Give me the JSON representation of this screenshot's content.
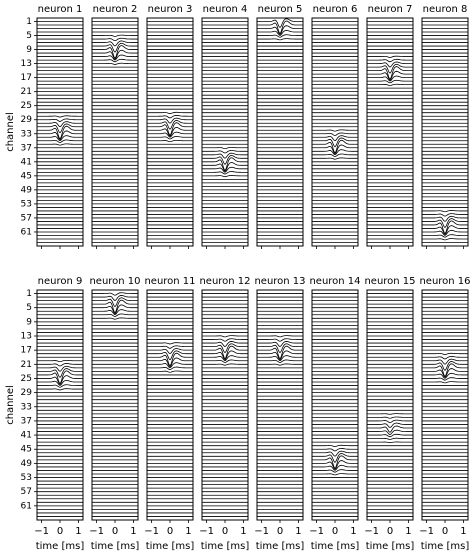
{
  "chart_data": {
    "type": "line",
    "ylabel": "channel",
    "xlabel": "time [ms]",
    "xlim": [
      -1.25,
      1.25
    ],
    "xticks": [
      {
        "value": -1,
        "label": "−1"
      },
      0,
      1
    ],
    "ylim": [
      0,
      65
    ],
    "y_inverted": true,
    "yticks": [
      1,
      5,
      9,
      13,
      17,
      21,
      25,
      29,
      33,
      37,
      41,
      45,
      49,
      53,
      57,
      61
    ],
    "series": [
      {
        "name": "neuron 1",
        "color": "#000000",
        "values": [
          0,
          0,
          0,
          0,
          0,
          0,
          0,
          0,
          0,
          0,
          0,
          0,
          0,
          0,
          0,
          0,
          0,
          0,
          0,
          0,
          0,
          0,
          0,
          0,
          0,
          0,
          0,
          0.1,
          0.2,
          0.4,
          0.7,
          1,
          0.7,
          0.4,
          0.2,
          0.1,
          0,
          0,
          0,
          0,
          0,
          0,
          0,
          0,
          0,
          0,
          0,
          0,
          0,
          0,
          0,
          0,
          0,
          0,
          0,
          0,
          0,
          0,
          0,
          0,
          0,
          0,
          0,
          0
        ]
      },
      {
        "name": "neuron 2",
        "color": "#000000",
        "values": [
          0,
          0,
          0,
          0,
          0.1,
          0.2,
          0.4,
          0.7,
          1,
          0.7,
          0.4,
          0.2,
          0.1,
          0,
          0,
          0,
          0,
          0,
          0,
          0,
          0,
          0,
          0,
          0,
          0,
          0,
          0,
          0,
          0,
          0,
          0,
          0,
          0,
          0,
          0,
          0,
          0,
          0,
          0,
          0,
          0,
          0,
          0,
          0,
          0,
          0,
          0,
          0,
          0,
          0,
          0,
          0,
          0,
          0,
          0,
          0,
          0,
          0,
          0,
          0,
          0,
          0,
          0,
          0
        ]
      },
      {
        "name": "neuron 3",
        "color": "#000000",
        "values": [
          0,
          0,
          0,
          0,
          0,
          0,
          0,
          0,
          0,
          0,
          0,
          0,
          0,
          0,
          0,
          0,
          0,
          0,
          0,
          0,
          0,
          0,
          0,
          0,
          0,
          0,
          0.1,
          0.2,
          0.4,
          0.7,
          1,
          0.7,
          0.4,
          0.2,
          0.1,
          0,
          0,
          0,
          0,
          0,
          0,
          0,
          0,
          0,
          0,
          0,
          0,
          0,
          0,
          0,
          0,
          0,
          0,
          0,
          0,
          0,
          0,
          0,
          0,
          0,
          0,
          0,
          0,
          0
        ]
      },
      {
        "name": "neuron 4",
        "color": "#000000",
        "values": [
          0,
          0,
          0,
          0,
          0,
          0,
          0,
          0,
          0,
          0,
          0,
          0,
          0,
          0,
          0,
          0,
          0,
          0,
          0,
          0,
          0,
          0,
          0,
          0,
          0,
          0,
          0,
          0,
          0,
          0,
          0,
          0,
          0,
          0,
          0,
          0,
          0.1,
          0.2,
          0.4,
          0.7,
          1,
          0.7,
          0.4,
          0.2,
          0.1,
          0,
          0,
          0,
          0,
          0,
          0,
          0,
          0,
          0,
          0,
          0,
          0,
          0,
          0,
          0,
          0,
          0,
          0,
          0
        ]
      },
      {
        "name": "neuron 5",
        "color": "#000000",
        "values": [
          0.7,
          1,
          0.7,
          0.4,
          0.2,
          0.1,
          0,
          0,
          0,
          0,
          0,
          0,
          0,
          0,
          0,
          0,
          0,
          0,
          0,
          0,
          0,
          0,
          0,
          0,
          0,
          0,
          0,
          0,
          0,
          0,
          0,
          0,
          0,
          0,
          0,
          0,
          0,
          0,
          0,
          0,
          0,
          0,
          0,
          0,
          0,
          0,
          0,
          0,
          0,
          0,
          0,
          0,
          0,
          0,
          0,
          0,
          0,
          0,
          0,
          0,
          0,
          0,
          0,
          0
        ]
      },
      {
        "name": "neuron 6",
        "color": "#000000",
        "values": [
          0,
          0,
          0,
          0,
          0,
          0,
          0,
          0,
          0,
          0,
          0,
          0,
          0,
          0,
          0,
          0,
          0,
          0,
          0,
          0,
          0,
          0,
          0,
          0,
          0,
          0,
          0,
          0,
          0,
          0,
          0,
          0.1,
          0.2,
          0.4,
          0.7,
          1,
          0.7,
          0.4,
          0.2,
          0.1,
          0,
          0,
          0,
          0,
          0,
          0,
          0,
          0,
          0,
          0,
          0,
          0,
          0,
          0,
          0,
          0,
          0,
          0,
          0,
          0,
          0,
          0,
          0,
          0
        ]
      },
      {
        "name": "neuron 7",
        "color": "#000000",
        "values": [
          0,
          0,
          0,
          0,
          0,
          0,
          0,
          0,
          0,
          0,
          0.1,
          0.2,
          0.4,
          0.7,
          1,
          0.7,
          0.4,
          0.2,
          0.1,
          0,
          0,
          0,
          0,
          0,
          0,
          0,
          0,
          0,
          0,
          0,
          0,
          0,
          0,
          0,
          0,
          0,
          0,
          0,
          0,
          0,
          0,
          0,
          0,
          0,
          0,
          0,
          0,
          0,
          0,
          0,
          0,
          0,
          0,
          0,
          0,
          0,
          0,
          0,
          0,
          0,
          0,
          0,
          0,
          0
        ]
      },
      {
        "name": "neuron 8",
        "color": "#000000",
        "values": [
          0,
          0,
          0,
          0,
          0,
          0,
          0,
          0,
          0,
          0,
          0,
          0,
          0,
          0,
          0,
          0,
          0,
          0,
          0,
          0,
          0,
          0,
          0,
          0,
          0,
          0,
          0,
          0,
          0,
          0,
          0,
          0,
          0,
          0,
          0,
          0,
          0,
          0,
          0,
          0,
          0,
          0,
          0,
          0,
          0,
          0,
          0,
          0,
          0,
          0,
          0,
          0,
          0,
          0,
          0.1,
          0.2,
          0.4,
          0.7,
          1,
          0.7,
          0.4,
          0.2,
          0.1,
          0
        ]
      },
      {
        "name": "neuron 9",
        "color": "#000000",
        "values": [
          0,
          0,
          0,
          0,
          0,
          0,
          0,
          0,
          0,
          0,
          0,
          0,
          0,
          0,
          0,
          0,
          0,
          0,
          0,
          0.1,
          0.2,
          0.4,
          0.7,
          1,
          0.7,
          0.4,
          0.2,
          0.1,
          0,
          0,
          0,
          0,
          0,
          0,
          0,
          0,
          0,
          0,
          0,
          0,
          0,
          0,
          0,
          0,
          0,
          0,
          0,
          0,
          0,
          0,
          0,
          0,
          0,
          0,
          0,
          0,
          0,
          0,
          0,
          0,
          0,
          0,
          0,
          0
        ]
      },
      {
        "name": "neuron 10",
        "color": "#000000",
        "values": [
          0.2,
          0.4,
          0.7,
          1,
          0.7,
          0.4,
          0.2,
          0.1,
          0,
          0,
          0,
          0,
          0,
          0,
          0,
          0,
          0,
          0,
          0,
          0,
          0,
          0,
          0,
          0,
          0,
          0,
          0,
          0,
          0,
          0,
          0,
          0,
          0,
          0,
          0,
          0,
          0,
          0,
          0,
          0,
          0,
          0,
          0,
          0,
          0,
          0,
          0,
          0,
          0,
          0,
          0,
          0,
          0,
          0,
          0,
          0,
          0,
          0,
          0,
          0,
          0,
          0,
          0,
          0
        ]
      },
      {
        "name": "neuron 11",
        "color": "#000000",
        "values": [
          0,
          0,
          0,
          0,
          0,
          0,
          0,
          0,
          0,
          0,
          0,
          0,
          0,
          0,
          0.1,
          0.2,
          0.4,
          0.7,
          1,
          0.7,
          0.4,
          0.2,
          0.1,
          0,
          0,
          0,
          0,
          0,
          0,
          0,
          0,
          0,
          0,
          0,
          0,
          0,
          0,
          0,
          0,
          0,
          0,
          0,
          0,
          0,
          0,
          0,
          0,
          0,
          0,
          0,
          0,
          0,
          0,
          0,
          0,
          0,
          0,
          0,
          0,
          0,
          0,
          0,
          0,
          0
        ]
      },
      {
        "name": "neuron 12",
        "color": "#000000",
        "values": [
          0,
          0,
          0,
          0,
          0,
          0,
          0,
          0,
          0,
          0,
          0,
          0,
          0.1,
          0.2,
          0.4,
          0.7,
          1,
          0.7,
          0.4,
          0.2,
          0.1,
          0,
          0,
          0,
          0,
          0,
          0,
          0,
          0,
          0,
          0,
          0,
          0,
          0,
          0,
          0,
          0,
          0,
          0,
          0,
          0,
          0,
          0,
          0,
          0,
          0,
          0,
          0,
          0,
          0,
          0,
          0,
          0,
          0,
          0,
          0,
          0,
          0,
          0,
          0,
          0,
          0,
          0,
          0
        ]
      },
      {
        "name": "neuron 13",
        "color": "#000000",
        "values": [
          0,
          0,
          0,
          0,
          0,
          0,
          0,
          0,
          0,
          0,
          0,
          0,
          0.1,
          0.2,
          0.4,
          0.7,
          1,
          0.7,
          0.4,
          0.2,
          0.1,
          0,
          0,
          0,
          0,
          0,
          0,
          0,
          0,
          0,
          0,
          0,
          0,
          0,
          0,
          0,
          0,
          0,
          0,
          0,
          0,
          0,
          0,
          0,
          0,
          0,
          0,
          0,
          0,
          0,
          0,
          0,
          0,
          0,
          0,
          0,
          0,
          0,
          0,
          0,
          0,
          0,
          0,
          0
        ]
      },
      {
        "name": "neuron 14",
        "color": "#000000",
        "values": [
          0,
          0,
          0,
          0,
          0,
          0,
          0,
          0,
          0,
          0,
          0,
          0,
          0,
          0,
          0,
          0,
          0,
          0,
          0,
          0,
          0,
          0,
          0,
          0,
          0,
          0,
          0,
          0,
          0,
          0,
          0,
          0,
          0,
          0,
          0,
          0,
          0,
          0,
          0,
          0,
          0,
          0,
          0,
          0.1,
          0.2,
          0.4,
          0.7,
          1,
          0.7,
          0.4,
          0.2,
          0.1,
          0,
          0,
          0,
          0,
          0,
          0,
          0,
          0,
          0,
          0,
          0,
          0
        ]
      },
      {
        "name": "neuron 15",
        "color": "#000000",
        "values": [
          0,
          0,
          0,
          0,
          0,
          0,
          0,
          0,
          0,
          0,
          0,
          0,
          0,
          0,
          0,
          0,
          0,
          0,
          0,
          0,
          0,
          0,
          0,
          0,
          0,
          0,
          0,
          0,
          0,
          0,
          0,
          0,
          0,
          0,
          0.05,
          0.1,
          0.2,
          0.35,
          0.5,
          0.35,
          0.2,
          0.1,
          0.05,
          0,
          0,
          0,
          0,
          0,
          0,
          0,
          0,
          0,
          0,
          0,
          0,
          0,
          0,
          0,
          0,
          0,
          0,
          0,
          0,
          0
        ]
      },
      {
        "name": "neuron 16",
        "color": "#000000",
        "values": [
          0,
          0,
          0,
          0,
          0,
          0,
          0,
          0,
          0,
          0,
          0,
          0,
          0,
          0,
          0,
          0,
          0,
          0.1,
          0.2,
          0.4,
          0.7,
          1,
          0.7,
          0.4,
          0.2,
          0.1,
          0,
          0,
          0,
          0,
          0,
          0,
          0,
          0,
          0,
          0,
          0,
          0,
          0,
          0,
          0,
          0,
          0,
          0,
          0,
          0,
          0,
          0,
          0,
          0,
          0,
          0,
          0,
          0,
          0,
          0,
          0,
          0,
          0,
          0,
          0,
          0,
          0,
          0
        ]
      }
    ]
  }
}
